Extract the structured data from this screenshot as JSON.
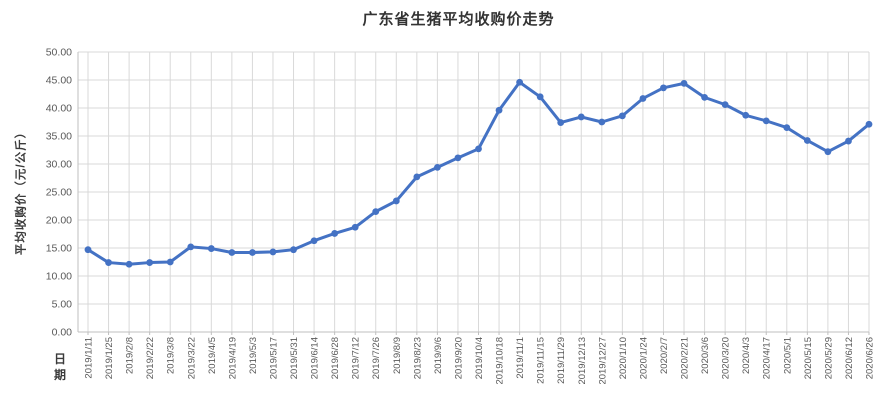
{
  "chart_data": {
    "type": "line",
    "title": "广东省生猪平均收购价走势",
    "ylabel": "平均收购价（元/公斤）",
    "xlabel": "日期",
    "categories": [
      "2019/1/11",
      "2019/1/25",
      "2019/2/8",
      "2019/2/22",
      "2019/3/8",
      "2019/3/22",
      "2019/4/5",
      "2019/4/19",
      "2019/5/3",
      "2019/5/17",
      "2019/5/31",
      "2019/6/14",
      "2019/6/28",
      "2019/7/12",
      "2019/7/26",
      "2019/8/9",
      "2019/8/23",
      "2019/9/6",
      "2019/9/20",
      "2019/10/4",
      "2019/10/18",
      "2019/11/1",
      "2019/11/15",
      "2019/11/29",
      "2019/12/13",
      "2019/12/27",
      "2020/1/10",
      "2020/1/24",
      "2020/2/7",
      "2020/2/21",
      "2020/3/6",
      "2020/3/20",
      "2020/4/3",
      "2020/4/17",
      "2020/5/1",
      "2020/5/15",
      "2020/5/29",
      "2020/6/12",
      "2020/6/26"
    ],
    "values": [
      14.7,
      12.4,
      12.1,
      12.4,
      12.5,
      15.2,
      14.9,
      14.2,
      14.2,
      14.3,
      14.7,
      16.3,
      17.6,
      18.7,
      21.5,
      23.4,
      27.7,
      29.4,
      31.1,
      32.7,
      39.6,
      44.6,
      42.0,
      37.4,
      38.4,
      37.5,
      38.6,
      41.7,
      43.6,
      44.4,
      41.9,
      40.6,
      38.7,
      37.7,
      36.5,
      34.2,
      32.2,
      34.1,
      37.1
    ],
    "ylim": [
      0,
      50
    ],
    "ytick_step": 5,
    "ytick_decimals": 2,
    "grid": true,
    "legend": "none",
    "marker": "circle",
    "colors": {
      "line": "#4472C4",
      "marker": "#4472C4",
      "gridline": "#D9D9D9",
      "axis": "#BFBFBF",
      "tick_label": "#595959",
      "title": "#333333",
      "axis_title": "#3b3b3b",
      "background": "#FFFFFF"
    }
  }
}
